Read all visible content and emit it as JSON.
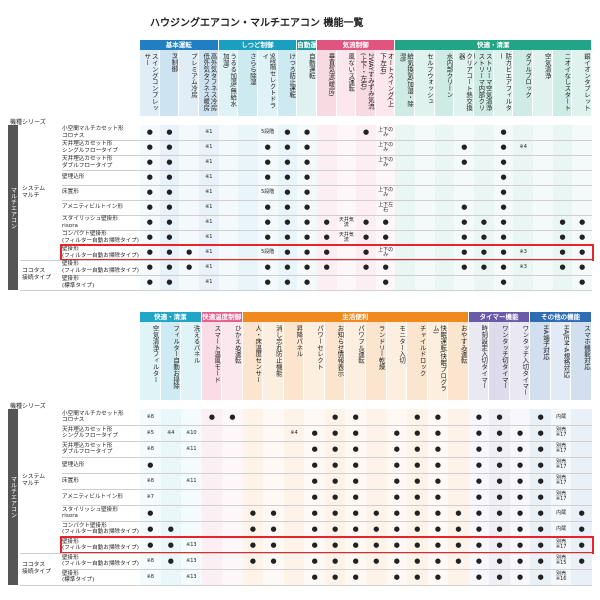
{
  "title": "ハウジングエアコン・マルチエアコン 機能一覧",
  "tables": [
    {
      "series_label": "機種シリーズ",
      "outer_label": "マルチエアコン",
      "groups": [
        {
          "name": "基本運転",
          "color": "#1f7fc2",
          "columns": [
            "スイングコンプレッサー",
            "PI制御",
            "プレミアム冷房",
            "高外気タフネス冷房 低外気タフネス暖房"
          ]
        },
        {
          "name": "しつど制御",
          "color": "#1a9fc0",
          "columns": [
            "うるる加湿(無給水加湿)",
            "さらら除湿",
            "9段階セレクトドライ",
            "けつろ防止運転"
          ]
        },
        {
          "name": "自動運転",
          "color": "#1b9a9a",
          "columns": [
            "自動運転"
          ]
        },
        {
          "name": "気流制御",
          "color": "#e0557f",
          "columns": [
            "垂直気流(暖房)",
            "風ないス運転",
            "2WAYすみずみ気流(上下・左右)",
            "オートスイング(上下左右)"
          ]
        },
        {
          "name": "快適・清潔",
          "color": "#22a487",
          "columns": [
            "給気換気(加湿・除湿)",
            "セルフウォッシュ",
            "水内部クリーン",
            "クリアコート熱交換器",
            "ストリーマ空気清浄 ストリーマ内部クリーン",
            "防カビエアフィルター",
            "ダブルブロック",
            "空気清浄",
            "ニオイなしスタート",
            "銀イオンタブレット"
          ]
        }
      ],
      "row_groups": [
        {
          "name": "システム\nマルチ",
          "rows": [
            {
              "label": "小空間マルチカセット形\nコロナス",
              "cells": [
                "●",
                "●",
                null,
                "※1",
                null,
                null,
                "5段階",
                "●",
                "●",
                null,
                null,
                "●",
                "上下のみ",
                null,
                null,
                null,
                null,
                null,
                "●",
                null,
                null,
                null,
                null
              ]
            },
            {
              "label": "天井埋込カセット形\nシングルフロータイプ",
              "cells": [
                "●",
                "●",
                null,
                "※1",
                null,
                null,
                "●",
                "●",
                "●",
                null,
                null,
                null,
                "上下のみ",
                null,
                null,
                null,
                "●",
                null,
                "●",
                "※4",
                null,
                null,
                null
              ]
            },
            {
              "label": "天井埋込カセット形\nダブルフロータイプ",
              "cells": [
                "●",
                "●",
                null,
                "※1",
                null,
                null,
                "●",
                "●",
                "●",
                null,
                null,
                null,
                "上下のみ",
                null,
                null,
                null,
                "●",
                null,
                "●",
                null,
                null,
                null,
                null
              ]
            },
            {
              "label": "壁埋込形",
              "cells": [
                "●",
                "●",
                null,
                "※1",
                null,
                null,
                "●",
                "●",
                "●",
                null,
                null,
                null,
                null,
                null,
                null,
                null,
                null,
                null,
                "●",
                null,
                null,
                null,
                null
              ]
            },
            {
              "label": "床置形",
              "cells": [
                "●",
                "●",
                null,
                "※1",
                null,
                null,
                "5段階",
                "●",
                "●",
                null,
                null,
                null,
                "上下のみ",
                null,
                null,
                null,
                null,
                null,
                "●",
                null,
                null,
                null,
                null
              ]
            },
            {
              "label": "アメニティビルトイン形",
              "cells": [
                "●",
                "●",
                null,
                "※1",
                null,
                null,
                "●",
                "●",
                "●",
                null,
                null,
                null,
                "上下左右",
                null,
                null,
                null,
                "●",
                null,
                "●",
                null,
                null,
                null,
                null
              ]
            },
            {
              "label": "スタイリッシュ壁掛形\nrisora",
              "cells": [
                "●",
                "●",
                null,
                "※1",
                null,
                null,
                "●",
                "●",
                "●",
                "●",
                "天井気流",
                "●",
                "●",
                null,
                null,
                null,
                "●",
                "●",
                "●",
                null,
                null,
                "●",
                "●"
              ]
            },
            {
              "label": "コンパクト壁掛形\n(フィルター自動お掃除タイプ)",
              "cells": [
                "●",
                "●",
                null,
                "※1",
                null,
                null,
                "●",
                "●",
                "●",
                "●",
                "天井気流",
                "●",
                "●",
                null,
                null,
                null,
                "●",
                "●",
                "●",
                null,
                null,
                "●",
                "●"
              ]
            },
            {
              "label": "壁掛形\n(フィルター自動お掃除タイプ)",
              "highlight": true,
              "cells": [
                "●",
                "●",
                "●",
                "※1",
                null,
                null,
                "5段階",
                "●",
                "●",
                "●",
                null,
                "●",
                "上下のみ",
                null,
                null,
                null,
                "●",
                "●",
                "●",
                "※3",
                null,
                "●",
                "●"
              ]
            }
          ]
        },
        {
          "name": "ココタス\n接続タイプ",
          "rows": [
            {
              "label": "壁掛形\n(フィルター自動お掃除タイプ)",
              "cells": [
                "●",
                "●",
                "●",
                "※1",
                null,
                null,
                "●",
                "●",
                "●",
                "●",
                null,
                "●",
                "●",
                null,
                null,
                null,
                "●",
                "●",
                "●",
                "※3",
                null,
                "●",
                "●"
              ]
            },
            {
              "label": "壁掛形\n(標準タイプ)",
              "cells": [
                "●",
                "●",
                null,
                "※1",
                null,
                null,
                "●",
                "●",
                "●",
                null,
                null,
                null,
                "●",
                null,
                null,
                null,
                null,
                null,
                "●",
                null,
                null,
                null,
                "●"
              ]
            }
          ]
        }
      ]
    },
    {
      "series_label": "機種シリーズ",
      "outer_label": "マルチエアコン",
      "groups": [
        {
          "name": "快適・清潔",
          "color": "#22a6c8",
          "columns": [
            "空気清浄フィルター",
            "フィルター自動お掃除",
            "洗えるパネル"
          ]
        },
        {
          "name": "快適温度制御",
          "color": "#e35e8e",
          "columns": [
            "スマート温風モード",
            "ひかえめ運転"
          ]
        },
        {
          "name": "生活便利",
          "color": "#f08a1f",
          "columns": [
            "人・床温度センサー",
            "消し忘れ防止機能",
            "昇降パネル",
            "パワーセレクト",
            "お知らせ情報表示",
            "パワフル運転",
            "ランドリー乾燥",
            "モニター入切",
            "チャイルドロック",
            "快眠運転(快眠プログラム)",
            "おやすみ運転"
          ]
        },
        {
          "name": "タイマー機能",
          "color": "#6a5aa8",
          "columns": [
            "時刻設定入切タイマー",
            "ワンタッチ切タイマー",
            "ワンタッチ入切タイマー"
          ]
        },
        {
          "name": "その他の機能",
          "color": "#2e6db4",
          "columns": [
            "HA端子対応",
            "HAJEM-A規格対応",
            "スマホ機能対応"
          ]
        }
      ],
      "row_groups": [
        {
          "name": "システム\nマルチ",
          "rows": [
            {
              "label": "小空間マルチカセット形\nコロナス",
              "cells": [
                "※8",
                null,
                null,
                "●",
                "●",
                null,
                null,
                null,
                null,
                "●",
                "●",
                null,
                null,
                "●",
                "●",
                null,
                "●",
                "●",
                null,
                "●",
                "内蔵",
                null
              ]
            },
            {
              "label": "天井埋込カセット形\nシングルフロータイプ",
              "cells": [
                "※5",
                "※4",
                "※10",
                null,
                null,
                null,
                null,
                "※4",
                "●",
                "●",
                "●",
                null,
                "●",
                "●",
                "●",
                null,
                "●",
                "●",
                "●",
                "●",
                "別売※17",
                null
              ]
            },
            {
              "label": "天井埋込カセット形\nダブルフロータイプ",
              "cells": [
                "※8",
                null,
                "※11",
                null,
                null,
                null,
                null,
                null,
                "●",
                "●",
                "●",
                null,
                "●",
                "●",
                "●",
                null,
                "●",
                "●",
                "●",
                "●",
                "別売※17",
                null
              ]
            },
            {
              "label": "壁埋込形",
              "cells": [
                "●",
                null,
                null,
                null,
                null,
                null,
                null,
                null,
                "●",
                "●",
                "●",
                null,
                "●",
                "●",
                "●",
                null,
                "●",
                "●",
                "●",
                "●",
                "別売※17",
                null
              ]
            },
            {
              "label": "床置形",
              "cells": [
                "※8",
                null,
                "※11",
                null,
                null,
                null,
                null,
                null,
                "●",
                "●",
                "●",
                null,
                "●",
                "●",
                "●",
                null,
                "●",
                "●",
                "●",
                "●",
                "別売※17",
                null
              ]
            },
            {
              "label": "アメニティビルトイン形",
              "cells": [
                "※7",
                null,
                null,
                null,
                null,
                null,
                null,
                null,
                "●",
                "●",
                "●",
                null,
                "●",
                "●",
                "●",
                null,
                "●",
                "●",
                "●",
                "●",
                "別売※17",
                null
              ]
            },
            {
              "label": "スタイリッシュ壁掛形\nrisora",
              "cells": [
                "●",
                null,
                null,
                null,
                null,
                "●",
                "●",
                null,
                "●",
                "●",
                "●",
                "●",
                "●",
                "●",
                "●",
                "●",
                "●",
                "●",
                "●",
                "●",
                "内蔵",
                "●"
              ]
            },
            {
              "label": "コンパクト壁掛形\n(フィルター自動お掃除タイプ)",
              "cells": [
                "●",
                "●",
                null,
                null,
                null,
                "●",
                "●",
                null,
                "●",
                "●",
                "●",
                "●",
                "●",
                "●",
                "●",
                "●",
                "●",
                "●",
                "●",
                "●",
                "内蔵",
                "●"
              ]
            },
            {
              "label": "壁掛形\n(フィルター自動お掃除タイプ)",
              "highlight": true,
              "cells": [
                "●",
                "●",
                "※13",
                null,
                null,
                "●",
                "●",
                null,
                "●",
                "●",
                "●",
                "●",
                "●",
                "●",
                "●",
                "●",
                "●",
                "●",
                "●",
                "●",
                "別売※17",
                "●"
              ]
            }
          ]
        },
        {
          "name": "ココタス\n接続タイプ",
          "rows": [
            {
              "label": "壁掛形\n(フィルター自動お掃除タイプ)",
              "cells": [
                "※8",
                "●",
                "※13",
                null,
                null,
                "●",
                "●",
                null,
                "●",
                "●",
                "●",
                "●",
                "●",
                "●",
                "●",
                "●",
                "●",
                "●",
                "●",
                "●",
                "別売※15",
                "●"
              ]
            },
            {
              "label": "壁掛形\n(標準タイプ)",
              "cells": [
                "※8",
                null,
                "※13",
                null,
                null,
                null,
                null,
                null,
                "●",
                "●",
                "●",
                null,
                "●",
                "●",
                "●",
                null,
                "●",
                "●",
                "●",
                "●",
                "別売※16",
                null
              ]
            }
          ]
        }
      ]
    }
  ]
}
